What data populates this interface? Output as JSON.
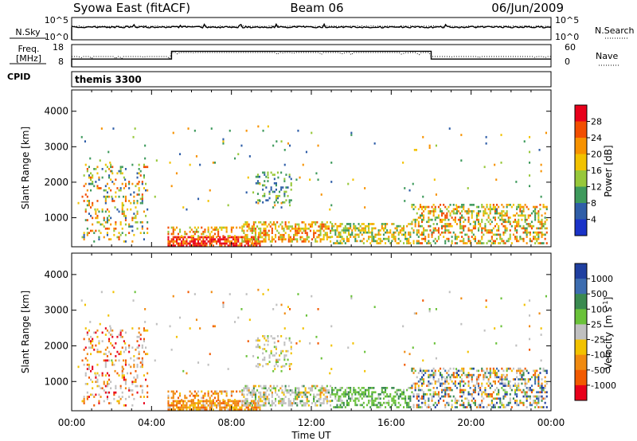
{
  "header": {
    "station": "Syowa East (fitACF)",
    "beam": "Beam 06",
    "date": "06/Jun/2009"
  },
  "chart_data": [
    {
      "type": "line",
      "panel": "nsky-nsearch",
      "left_label": "N.Sky",
      "right_label": "N.Search",
      "left_ticks": [
        "10^5",
        "10^0"
      ],
      "right_ticks": [
        "10^5",
        "10^0"
      ],
      "line_style": "solid",
      "note": "near-constant noise level through the day"
    },
    {
      "type": "line",
      "panel": "freq-nave",
      "left_label_top": "Freq.",
      "left_label_bottom": "[MHz]",
      "right_label": "Nave",
      "left_ticks": [
        "18",
        "8"
      ],
      "right_ticks": [
        "60",
        "0"
      ],
      "freq_steps": [
        {
          "from_h": 0,
          "to_h": 5.0,
          "level": 0.35
        },
        {
          "from_h": 5.0,
          "to_h": 18.0,
          "level": 0.7
        },
        {
          "from_h": 18.0,
          "to_h": 24.0,
          "level": 0.35
        }
      ]
    },
    {
      "type": "text-strip",
      "panel": "cpid",
      "label": "CPID",
      "value": "themis 3300"
    },
    {
      "type": "heatmap",
      "panel": "power",
      "ylabel": "Slant Range [km]",
      "ylim": [
        180,
        4600
      ],
      "yticks": [
        "1000",
        "2000",
        "3000",
        "4000"
      ],
      "colorbar": {
        "label": "Power [dB]",
        "ticks": [
          "28",
          "24",
          "20",
          "16",
          "12",
          "8",
          "4"
        ],
        "colors": [
          "#e8001a",
          "#f24e00",
          "#f79200",
          "#f2c200",
          "#97c83a",
          "#3e9a5c",
          "#2f5ea8",
          "#1a33c8"
        ]
      }
    },
    {
      "type": "heatmap",
      "panel": "velocity",
      "ylabel": "Slant Range [km]",
      "ylim": [
        180,
        4600
      ],
      "yticks": [
        "1000",
        "2000",
        "3000",
        "4000"
      ],
      "colorbar": {
        "label": "Velocity",
        "unit": "[m s",
        "unit_exp": "-1",
        "unit_close": "]",
        "ticks": [
          "1000",
          "500",
          "100",
          "25",
          "-25",
          "-100",
          "-500",
          "-1000"
        ],
        "colors": [
          "#1f3fa0",
          "#3d6db0",
          "#3a8a50",
          "#6ac23a",
          "#c0c0c0",
          "#f2c200",
          "#f08a10",
          "#f25a00",
          "#e8001a"
        ]
      }
    }
  ],
  "time_axis": {
    "label": "Time UT",
    "ticks": [
      "00:00",
      "04:00",
      "08:00",
      "12:00",
      "16:00",
      "20:00",
      "00:00"
    ]
  },
  "echo_regions": [
    {
      "t0": 0.5,
      "t1": 3.8,
      "r0": 300,
      "r1": 2500,
      "d": 0.18,
      "pw": [
        4,
        8,
        12,
        16,
        20,
        24
      ],
      "vl": [
        4,
        5,
        6,
        7,
        8
      ],
      "gray": 0.2
    },
    {
      "t0": 4.8,
      "t1": 9.5,
      "r0": 180,
      "r1": 450,
      "d": 0.75,
      "pw": [
        20,
        24,
        28,
        28
      ],
      "vl": [
        5,
        6,
        6,
        7
      ],
      "gray": 0.05
    },
    {
      "t0": 4.8,
      "t1": 8.5,
      "r0": 450,
      "r1": 750,
      "d": 0.35,
      "pw": [
        12,
        16,
        20,
        24
      ],
      "vl": [
        5,
        6,
        6,
        7
      ],
      "gray": 0.1
    },
    {
      "t0": 8.5,
      "t1": 13.0,
      "r0": 300,
      "r1": 900,
      "d": 0.55,
      "pw": [
        12,
        16,
        20,
        24
      ],
      "vl": [
        2,
        3,
        4,
        4,
        5,
        6
      ],
      "gray": 0.35
    },
    {
      "t0": 9.2,
      "t1": 11.0,
      "r0": 1400,
      "r1": 2300,
      "d": 0.25,
      "pw": [
        4,
        8,
        12
      ],
      "vl": [
        3,
        4,
        5
      ],
      "gray": 0.3
    },
    {
      "t0": 13.0,
      "t1": 17.0,
      "r0": 250,
      "r1": 850,
      "d": 0.45,
      "pw": [
        8,
        12,
        16,
        20
      ],
      "vl": [
        2,
        3,
        3
      ],
      "gray": 0.1
    },
    {
      "t0": 17.0,
      "t1": 23.8,
      "r0": 250,
      "r1": 1400,
      "d": 0.4,
      "pw": [
        8,
        12,
        16,
        20,
        24
      ],
      "vl": [
        0,
        1,
        2,
        3,
        4,
        5,
        6,
        7
      ],
      "gray": 0.15
    },
    {
      "t0": 0.3,
      "t1": 23.8,
      "r0": 1200,
      "r1": 3600,
      "d": 0.012,
      "pw": [
        4,
        8,
        12,
        16,
        20
      ],
      "vl": [
        3,
        4,
        5,
        6,
        7
      ],
      "gray": 0.2
    }
  ]
}
